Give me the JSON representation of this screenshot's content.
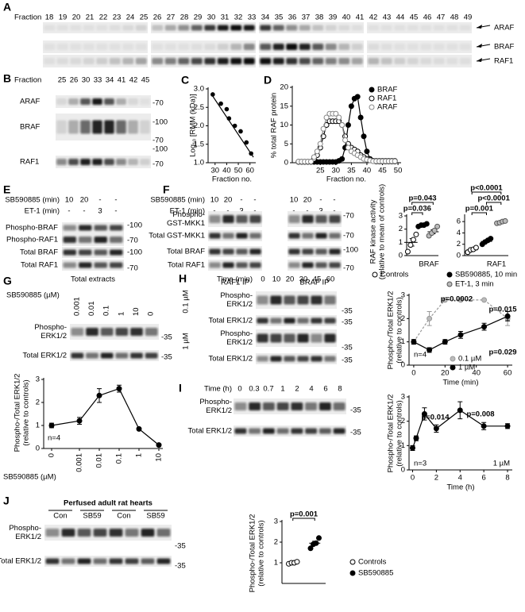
{
  "blots": {
    "A": {
      "panel": "A",
      "header": "Fraction",
      "lanes": [
        18,
        19,
        20,
        21,
        22,
        23,
        24,
        25,
        26,
        27,
        28,
        29,
        30,
        31,
        32,
        33,
        34,
        35,
        36,
        37,
        38,
        39,
        40,
        41,
        42,
        43,
        44,
        45,
        46,
        47,
        48,
        49
      ],
      "bands": [
        "ARAF",
        "BRAF",
        "RAF1"
      ]
    },
    "B": {
      "panel": "B",
      "header": "Fraction",
      "lanes": [
        25,
        26,
        30,
        33,
        34,
        41,
        42,
        45
      ],
      "rows": [
        [
          "ARAF"
        ],
        [
          "BRAF"
        ],
        [
          "RAF1"
        ]
      ],
      "markers": [
        "-70",
        "-100",
        "-70",
        "-100",
        "-70"
      ]
    },
    "E": {
      "panel": "E",
      "header": [
        {
          "name": "SB590885 (min)",
          "lanes": [
            "10",
            "20",
            "-",
            "-"
          ]
        },
        {
          "name": "ET-1 (min)",
          "lanes": [
            "-",
            "-",
            "3",
            "-"
          ]
        }
      ],
      "rows": [
        [
          "Phospho-BRAF"
        ],
        [
          "Phospho-RAF1"
        ],
        [
          "Total BRAF"
        ],
        [
          "Total RAF1"
        ]
      ],
      "markers": [
        "-100",
        "-70",
        "-100",
        "-70"
      ],
      "captions": [
        "Total extracts"
      ]
    },
    "F": {
      "panel": "F",
      "header": [
        {
          "name": "SB590885 (min)",
          "lanes": [
            "10",
            "20",
            "-",
            "-",
            "10",
            "20",
            "-",
            "-"
          ]
        },
        {
          "name": "ET-1 (min)",
          "lanes": [
            "-",
            "-",
            "3",
            "-",
            "-",
            "-",
            "3",
            "-"
          ]
        }
      ],
      "rows": [
        [
          "Phospho-",
          "GST-MKK1"
        ],
        [
          "Total GST-MKK1"
        ],
        [
          "Total BRAF"
        ],
        [
          "Total RAF1"
        ]
      ],
      "markers": [
        "-70",
        "-70",
        "-100",
        "-70"
      ],
      "captions": [
        "RAF1 IP",
        "BRAF IP"
      ]
    },
    "G": {
      "panel": "G",
      "header": "SB590885 (µM)",
      "lanes": [
        "0.001",
        "0.01",
        "0.1",
        "1",
        "10",
        "0"
      ],
      "rows": [
        [
          "Phospho-",
          "ERK1/2"
        ],
        [
          "Total ERK1/2"
        ]
      ],
      "markers": [
        "-35",
        "-35"
      ]
    },
    "H": {
      "panel": "H",
      "header": [
        {
          "name": "Time (min)",
          "lanes": [
            "0",
            "10",
            "20",
            "30",
            "45",
            "60"
          ]
        }
      ],
      "groups": [
        "0.1 µM",
        "1 µM"
      ],
      "rows": [
        [
          "Phospho-",
          "ERK1/2"
        ],
        [
          "Total ERK1/2"
        ],
        [
          "Phospho-",
          "ERK1/2"
        ],
        [
          "Total ERK1/2"
        ]
      ],
      "markers": [
        "-35",
        "-35",
        "-35",
        "-35"
      ]
    },
    "I": {
      "panel": "I",
      "header": [
        {
          "name": "Time (h)",
          "lanes": [
            "0",
            "0.3",
            "0.7",
            "1",
            "2",
            "4",
            "6",
            "8"
          ]
        }
      ],
      "rows": [
        [
          "Phospho-",
          "ERK1/2"
        ],
        [
          "Total ERK1/2"
        ]
      ],
      "markers": [
        "-35",
        "-35"
      ]
    },
    "J": {
      "panel": "J",
      "title": "Perfused adult rat hearts",
      "lanes": [
        "Con",
        "SB59",
        "Con",
        "SB59"
      ],
      "rows": [
        [
          "Phospho-",
          "ERK1/2"
        ],
        [
          "Total ERK1/2"
        ]
      ],
      "markers": [
        "-35",
        "-35"
      ]
    }
  },
  "chart_data": [
    {
      "type": "scatter",
      "panel": "C",
      "y_label": [
        "Log₁₀ [RMM (kDa)]"
      ],
      "x_label": "Fraction no.",
      "x": [
        28,
        35,
        40,
        42,
        47,
        52,
        57,
        61
      ],
      "values": [
        2.85,
        2.6,
        2.45,
        2.2,
        2.0,
        1.85,
        1.55,
        1.25
      ],
      "fit": {
        "x": [
          27,
          63
        ],
        "values": [
          2.85,
          1.15
        ]
      },
      "color": "#000",
      "xlim": [
        24,
        65
      ],
      "ylim": [
        1,
        3
      ],
      "xticks": [
        30,
        40,
        50,
        60
      ],
      "yticks": [
        {
          "value": 1,
          "label": "1.0"
        },
        1.5,
        {
          "value": 2,
          "label": "2.0"
        },
        2.5,
        {
          "value": 3,
          "label": "3.0"
        }
      ]
    },
    {
      "type": "line",
      "panel": "D",
      "y_label": [
        "% total RAF protein"
      ],
      "x_label": "Fraction no.",
      "x": [
        18,
        19,
        20,
        21,
        22,
        23,
        24,
        25,
        26,
        27,
        28,
        29,
        30,
        31,
        32,
        33,
        34,
        35,
        36,
        37,
        38,
        39,
        40,
        41,
        42,
        43,
        44,
        45,
        46,
        47,
        48,
        49
      ],
      "series": [
        {
          "name": "BRAF",
          "color": "#000",
          "fill": "#000",
          "values": [
            0.2,
            0.2,
            0.2,
            0.2,
            0.2,
            0.2,
            0.2,
            0.2,
            0.2,
            0.2,
            0.2,
            0.2,
            0.2,
            0.5,
            1,
            4,
            10,
            15,
            17,
            17.5,
            12,
            7,
            3,
            1,
            0.5,
            0.3,
            0.3,
            0.3,
            0.3,
            0.3,
            0.3,
            0.3
          ]
        },
        {
          "name": "RAF1",
          "color": "#000",
          "fill": "#fff",
          "values": [
            0.3,
            0.3,
            0.3,
            0.3,
            0.3,
            1,
            2,
            4,
            7,
            10,
            11,
            11,
            11,
            11,
            10,
            7,
            5,
            4,
            3.5,
            3,
            2,
            1.5,
            1,
            0.8,
            0.5,
            0.5,
            0.5,
            0.5,
            0.5,
            0.5,
            0.5,
            0.5
          ]
        },
        {
          "name": "ARAF",
          "color": "#888",
          "fill": "#fff",
          "values": [
            0.3,
            0.3,
            0.3,
            0.3,
            0.3,
            1.5,
            3,
            5,
            9,
            12,
            13,
            13,
            13,
            12,
            10,
            6,
            4,
            3,
            2.5,
            2,
            1.5,
            1,
            0.8,
            0.6,
            0.4,
            0.4,
            0.4,
            0.4,
            0.4,
            0.4,
            0.4,
            0.4
          ]
        }
      ],
      "xlim": [
        16,
        51
      ],
      "ylim": [
        0,
        20
      ],
      "xticks": [
        25,
        30,
        35,
        40,
        45,
        50
      ],
      "yticks": [
        0,
        5,
        10,
        15,
        20
      ]
    },
    {
      "type": "dotplot",
      "y_label": [
        "RAF kinase activity",
        "(relative to mean of controls)"
      ],
      "group_label": "BRAF",
      "ylim": [
        0,
        3
      ],
      "yticks": [
        0,
        1,
        2,
        3
      ],
      "series": [
        {
          "name": "Controls",
          "fill": "#fff",
          "stroke": "#000",
          "values": [
            0.3,
            0.8,
            1.2,
            1.6
          ],
          "mean": 1.0,
          "error": 0.28
        },
        {
          "name": "SB590885, 10 min",
          "fill": "#000",
          "stroke": "#000",
          "values": [
            2.2,
            2.3,
            2.3,
            2.4
          ],
          "mean": 2.3,
          "error": 0.05
        },
        {
          "name": "ET-1, 3 min",
          "fill": "#bbb",
          "stroke": "#555",
          "values": [
            1.5,
            1.7,
            1.9,
            2.2
          ],
          "mean": 1.8,
          "error": 0.15
        }
      ],
      "comparisons": [
        "p=0.036",
        "p=0.043"
      ]
    },
    {
      "type": "dotplot",
      "group_label": "RAF1",
      "ylim": [
        0,
        7
      ],
      "yticks": [
        0,
        2,
        4,
        6
      ],
      "series": [
        {
          "fill": "#fff",
          "stroke": "#000",
          "values": [
            0.6,
            1.0,
            1.1,
            1.4
          ],
          "mean": 1.0,
          "error": 0.17
        },
        {
          "fill": "#000",
          "stroke": "#000",
          "values": [
            2.0,
            2.4,
            2.7,
            3.0
          ],
          "mean": 2.5,
          "error": 0.2
        },
        {
          "fill": "#bbb",
          "stroke": "#555",
          "values": [
            5.7,
            5.8,
            6.0,
            6.1
          ],
          "mean": 5.9,
          "error": 0.1
        }
      ],
      "comparisons": [
        "p=0.001",
        "p<0.0001",
        "p<0.0001"
      ]
    },
    {
      "type": "line",
      "y_label": [
        "Phospho-/Total ERK1/2",
        "(relative to controls)"
      ],
      "x_label": "SB590885 (µM)",
      "categories": [
        "0",
        "0.001",
        "0.01",
        "0.1",
        "1",
        "10"
      ],
      "series": [
        {
          "color": "#000",
          "fill": "#000",
          "values": [
            1.0,
            1.2,
            2.3,
            2.6,
            0.85,
            0.15
          ],
          "errors": [
            0.1,
            0.15,
            0.3,
            0.15,
            0.05,
            0.05
          ]
        }
      ],
      "ylim": [
        0,
        3
      ],
      "yticks": [
        0,
        1,
        2,
        3
      ],
      "notes": [
        "n=4"
      ]
    },
    {
      "type": "line",
      "y_label": [
        "Phospho-/Total ERK1/2",
        "(relative to controls)"
      ],
      "x_label": "Time (min)",
      "series": [
        {
          "name": "0.1 µM",
          "color": "#999",
          "fill": "#bbb",
          "line_style": "dashed",
          "x": [
            0,
            10,
            20,
            30,
            45,
            60
          ],
          "values": [
            1,
            2,
            2.8,
            2.8,
            2.8,
            2.0
          ],
          "errors": [
            0.1,
            0.3,
            0,
            0,
            0,
            0.3
          ]
        },
        {
          "name": "1 µM",
          "color": "#000",
          "fill": "#000",
          "x": [
            0,
            10,
            20,
            30,
            45,
            60
          ],
          "values": [
            1,
            0.65,
            1.0,
            1.3,
            1.65,
            2.1
          ],
          "errors": [
            0.1,
            0.1,
            0.1,
            0.15,
            0.15,
            0.2
          ]
        }
      ],
      "xlim": [
        -3,
        63
      ],
      "ylim": [
        0,
        3
      ],
      "xticks": [
        0,
        20,
        40,
        60
      ],
      "yticks": [
        0,
        1,
        2,
        3
      ],
      "annotations": [
        "p=0.0002",
        "p=0.015",
        "p=0.029"
      ],
      "notes": [
        "n=4"
      ]
    },
    {
      "type": "line",
      "y_label": [
        "Phospho-/Total ERK1/2",
        "(relative to controls)"
      ],
      "x_label": "Time (h)",
      "series": [
        {
          "color": "#000",
          "fill": "#000",
          "x": [
            0,
            0.3,
            1,
            2,
            4,
            6,
            8
          ],
          "values": [
            0.9,
            1.3,
            2.3,
            1.7,
            2.45,
            1.8,
            1.8
          ],
          "errors": [
            0.1,
            0.1,
            0.25,
            0.15,
            0.35,
            0.15,
            0.1
          ]
        }
      ],
      "xlim": [
        -0.3,
        8.4
      ],
      "ylim": [
        0,
        3
      ],
      "xticks": [
        0,
        2,
        4,
        6,
        8
      ],
      "yticks": [
        0,
        1,
        2,
        3
      ],
      "annotations": [
        "p=0.014",
        "p=0.008"
      ],
      "notes": [
        "n=3",
        "1 µM"
      ]
    },
    {
      "type": "dotplot",
      "y_label": [
        "Phospho-/Total ERK1/2",
        "(relative to controls)"
      ],
      "ylim": [
        0,
        3
      ],
      "yticks": [
        1,
        2,
        3
      ],
      "series": [
        {
          "name": "Controls",
          "fill": "#fff",
          "stroke": "#000",
          "values": [
            0.95,
            1.0,
            1.0,
            1.05
          ],
          "mean": 1.0,
          "error": 0.03
        },
        {
          "name": "SB590885",
          "fill": "#000",
          "stroke": "#000",
          "values": [
            1.7,
            1.9,
            1.95,
            2.2
          ],
          "mean": 1.95,
          "error": 0.1
        }
      ],
      "comparisons": [
        "p=0.001"
      ]
    }
  ]
}
